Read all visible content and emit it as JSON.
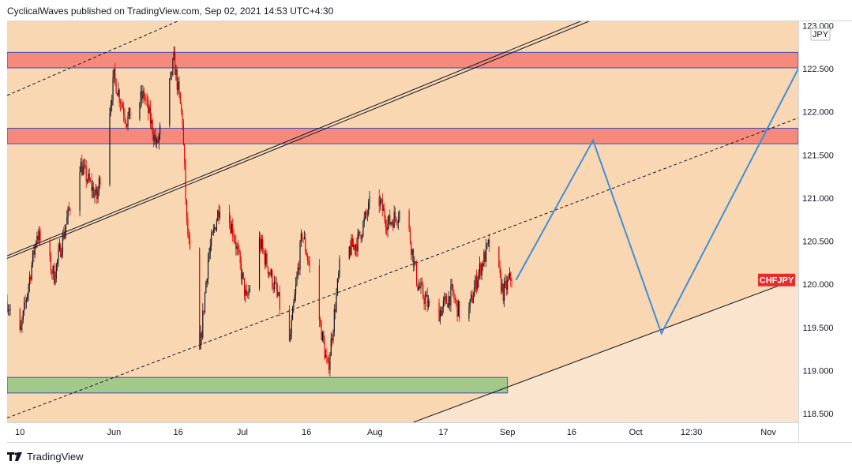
{
  "header": {
    "publisher": "CyclicalWaves",
    "published_text": "published on TradingView.com, Sep 02, 2021 14:53 UTC+4:30"
  },
  "footer": {
    "brand": "TradingView"
  },
  "colors": {
    "background": "#f9d7b3",
    "background_light": "#fbe4cd",
    "resistance_zone": "#f58a7c",
    "support_zone": "#a3c98a",
    "zone_border": "#3f51b5",
    "candle_down": "#e00000",
    "candle_up": "#131722",
    "projection": "#3d8fd9",
    "trendline": "#131722",
    "symbol_label_bg": "#e82b2b"
  },
  "chart_data": {
    "type": "candlestick",
    "symbol": "CHFJPY",
    "currency": "JPY",
    "last_price": 120.05,
    "y_axis": {
      "range": [
        118.4,
        123.05
      ],
      "ticks": [
        118.5,
        119.0,
        119.5,
        120.0,
        120.5,
        121.0,
        121.5,
        122.0,
        122.5,
        123.0
      ],
      "tick_labels": [
        "118.500",
        "119.000",
        "119.500",
        "120.000",
        "120.500",
        "121.000",
        "121.500",
        "122.000",
        "122.500",
        "123.000"
      ]
    },
    "x_axis": {
      "range": [
        "2021-05-07",
        "2021-11-08"
      ],
      "ticks": [
        {
          "date": "2021-05-10",
          "label": "10"
        },
        {
          "date": "2021-06-01",
          "label": "Jun"
        },
        {
          "date": "2021-06-16",
          "label": "16"
        },
        {
          "date": "2021-07-01",
          "label": "Jul"
        },
        {
          "date": "2021-07-16",
          "label": "16"
        },
        {
          "date": "2021-08-01",
          "label": "Aug"
        },
        {
          "date": "2021-08-17",
          "label": "17"
        },
        {
          "date": "2021-09-01",
          "label": "Sep"
        },
        {
          "date": "2021-09-16",
          "label": "16"
        },
        {
          "date": "2021-10-01",
          "label": "Oct"
        },
        {
          "date": "2021-10-14",
          "label": "12:30"
        },
        {
          "date": "2021-11-01",
          "label": "Nov"
        }
      ]
    },
    "price_path": [
      {
        "date": "2021-05-07",
        "price": 119.8
      },
      {
        "date": "2021-05-10",
        "price": 119.4
      },
      {
        "date": "2021-05-14",
        "price": 120.6
      },
      {
        "date": "2021-05-18",
        "price": 120.1
      },
      {
        "date": "2021-05-24",
        "price": 121.4
      },
      {
        "date": "2021-05-28",
        "price": 121.0
      },
      {
        "date": "2021-06-01",
        "price": 122.4
      },
      {
        "date": "2021-06-04",
        "price": 121.9
      },
      {
        "date": "2021-06-08",
        "price": 122.2
      },
      {
        "date": "2021-06-11",
        "price": 121.6
      },
      {
        "date": "2021-06-14",
        "price": 122.3
      },
      {
        "date": "2021-06-15",
        "price": 122.6
      },
      {
        "date": "2021-06-17",
        "price": 121.9
      },
      {
        "date": "2021-06-18",
        "price": 120.7
      },
      {
        "date": "2021-06-21",
        "price": 119.2
      },
      {
        "date": "2021-06-23",
        "price": 120.3
      },
      {
        "date": "2021-06-26",
        "price": 121.0
      },
      {
        "date": "2021-06-29",
        "price": 120.6
      },
      {
        "date": "2021-07-02",
        "price": 119.8
      },
      {
        "date": "2021-07-05",
        "price": 120.5
      },
      {
        "date": "2021-07-09",
        "price": 119.9
      },
      {
        "date": "2021-07-12",
        "price": 119.3
      },
      {
        "date": "2021-07-15",
        "price": 120.6
      },
      {
        "date": "2021-07-18",
        "price": 119.9
      },
      {
        "date": "2021-07-21",
        "price": 119.0
      },
      {
        "date": "2021-07-24",
        "price": 120.3
      },
      {
        "date": "2021-07-28",
        "price": 120.5
      },
      {
        "date": "2021-08-01",
        "price": 121.1
      },
      {
        "date": "2021-08-04",
        "price": 120.7
      },
      {
        "date": "2021-08-08",
        "price": 120.9
      },
      {
        "date": "2021-08-11",
        "price": 120.0
      },
      {
        "date": "2021-08-15",
        "price": 119.6
      },
      {
        "date": "2021-08-19",
        "price": 119.9
      },
      {
        "date": "2021-08-22",
        "price": 119.5
      },
      {
        "date": "2021-08-25",
        "price": 120.1
      },
      {
        "date": "2021-08-28",
        "price": 120.5
      },
      {
        "date": "2021-08-31",
        "price": 119.9
      },
      {
        "date": "2021-09-02",
        "price": 120.1
      }
    ],
    "zones": [
      {
        "name": "resistance-upper",
        "type": "resistance",
        "from": 122.51,
        "to": 122.69
      },
      {
        "name": "resistance-lower",
        "type": "resistance",
        "from": 121.63,
        "to": 121.81
      },
      {
        "name": "support",
        "type": "support",
        "from": 118.74,
        "to": 118.92,
        "until": "2021-09-01"
      }
    ],
    "trendlines": [
      {
        "style": "solid",
        "start": {
          "date": "2021-05-07",
          "price": 120.33
        },
        "end": {
          "date": "2021-09-24",
          "price": 123.17
        }
      },
      {
        "style": "solid",
        "start": {
          "date": "2021-05-07",
          "price": 120.3
        },
        "end": {
          "date": "2021-09-24",
          "price": 123.13
        }
      },
      {
        "style": "dashed",
        "start": {
          "date": "2021-05-07",
          "price": 118.45
        },
        "end": {
          "date": "2021-11-08",
          "price": 121.93
        }
      },
      {
        "style": "dashed",
        "start": {
          "date": "2021-05-07",
          "price": 122.19
        },
        "end": {
          "date": "2021-06-20",
          "price": 123.14
        }
      },
      {
        "style": "solid",
        "start": {
          "date": "2021-08-10",
          "price": 118.4
        },
        "end": {
          "date": "2021-11-07",
          "price": 120.05
        }
      }
    ],
    "projection": [
      {
        "date": "2021-09-03",
        "price": 120.05
      },
      {
        "date": "2021-09-21",
        "price": 121.67
      },
      {
        "date": "2021-10-07",
        "price": 119.43
      },
      {
        "date": "2021-11-08",
        "price": 122.5
      }
    ]
  }
}
